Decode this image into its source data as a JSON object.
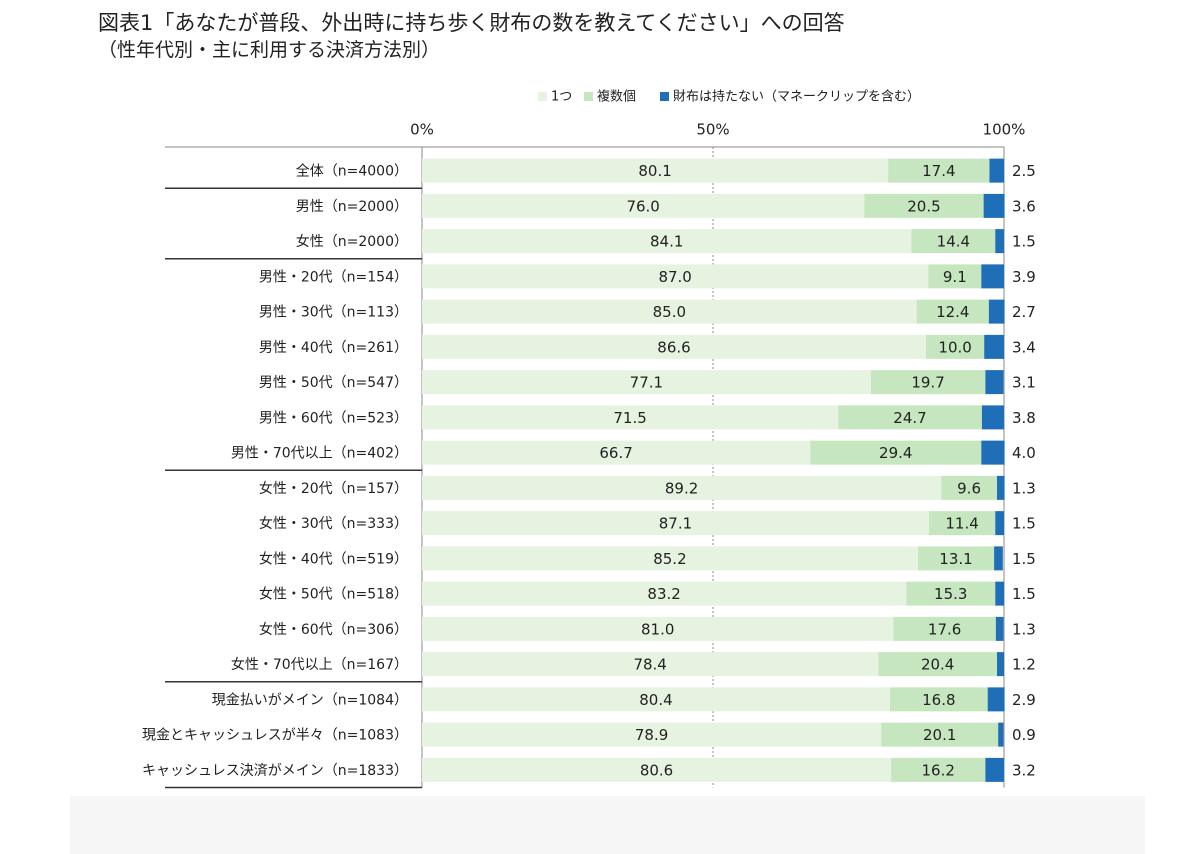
{
  "title": "図表1「あなたが普段、外出時に持ち歩く財布の数を教えてください」への回答",
  "subtitle": "（性年代別・主に利用する決済方法別）",
  "colors": {
    "one": "#e6f3e1",
    "multiple": "#c6e6c0",
    "none": "#1f6fb8",
    "grid": "#888888",
    "separator": "#333333",
    "text": "#222222"
  },
  "chart_data": {
    "type": "bar",
    "orientation": "horizontal",
    "stacked": true,
    "percent": true,
    "legend_position": "top",
    "axis": {
      "ticks": [
        "0%",
        "50%",
        "100%"
      ],
      "range": [
        0,
        100
      ]
    },
    "series": [
      {
        "name": "1つ",
        "color_key": "one",
        "values": [
          80.1,
          76.0,
          84.1,
          87.0,
          85.0,
          86.6,
          77.1,
          71.5,
          66.7,
          89.2,
          87.1,
          85.2,
          83.2,
          81.0,
          78.4,
          80.4,
          78.9,
          80.6
        ]
      },
      {
        "name": "複数個",
        "color_key": "multiple",
        "values": [
          17.4,
          20.5,
          14.4,
          9.1,
          12.4,
          10.0,
          19.7,
          24.7,
          29.4,
          9.6,
          11.4,
          13.1,
          15.3,
          17.6,
          20.4,
          16.8,
          20.1,
          16.2
        ]
      },
      {
        "name": "財布は持たない（マネークリップを含む）",
        "color_key": "none",
        "values": [
          2.5,
          3.6,
          1.5,
          3.9,
          2.7,
          3.4,
          3.1,
          3.8,
          4.0,
          1.3,
          1.5,
          1.5,
          1.5,
          1.3,
          1.2,
          2.9,
          0.9,
          3.2
        ]
      }
    ],
    "categories": [
      "全体（n=4000）",
      "男性（n=2000）",
      "女性（n=2000）",
      "男性・20代（n=154）",
      "男性・30代（n=113）",
      "男性・40代（n=261）",
      "男性・50代（n=547）",
      "男性・60代（n=523）",
      "男性・70代以上（n=402）",
      "女性・20代（n=157）",
      "女性・30代（n=333）",
      "女性・40代（n=519）",
      "女性・50代（n=518）",
      "女性・60代（n=306）",
      "女性・70代以上（n=167）",
      "現金払いがメイン（n=1084）",
      "現金とキャッシュレスが半々（n=1083）",
      "キャッシュレス決済がメイン（n=1833）"
    ],
    "group_separators_after": [
      0,
      2,
      8,
      14
    ]
  }
}
